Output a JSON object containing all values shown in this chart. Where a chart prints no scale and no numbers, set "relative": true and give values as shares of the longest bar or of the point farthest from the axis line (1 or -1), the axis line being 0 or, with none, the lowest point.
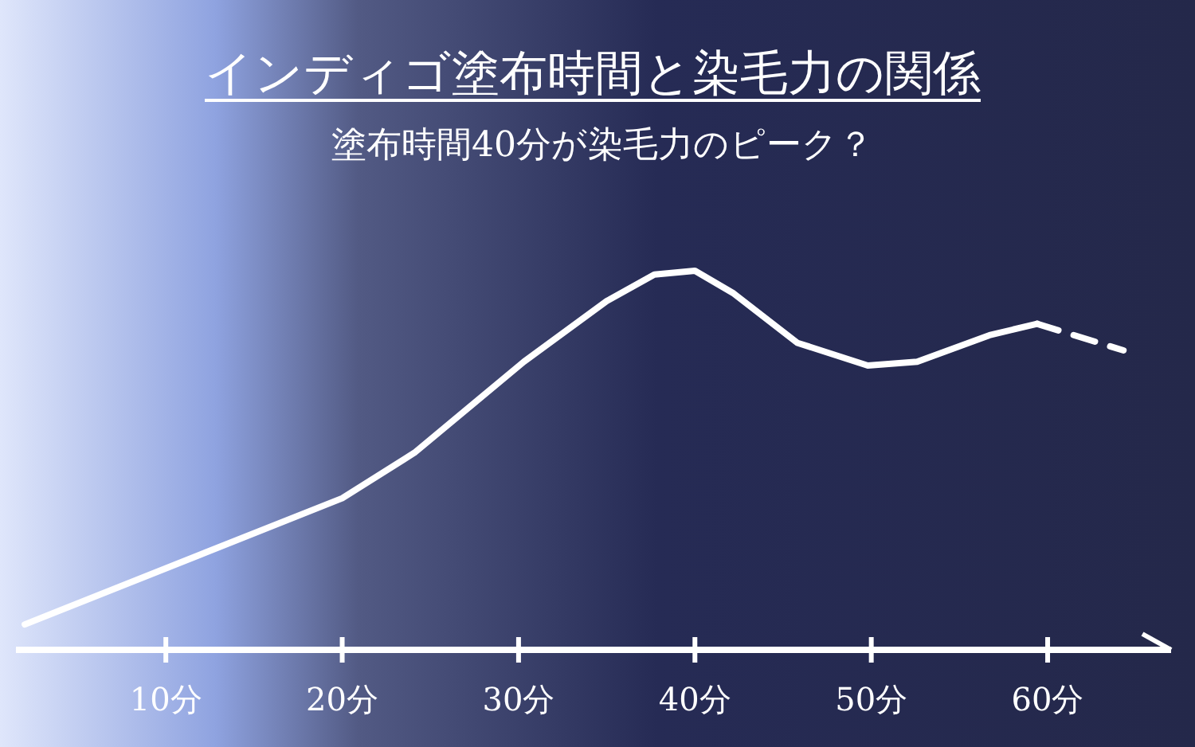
{
  "chart_data": {
    "type": "line",
    "title": "インディゴ塗布時間と染毛力の関係",
    "subtitle": "塗布時間40分が染毛力のピーク？",
    "relative": true,
    "xlim": [
      1.5,
      67
    ],
    "xticks": [
      {
        "value": 10,
        "label": "10分"
      },
      {
        "value": 20,
        "label": "20分"
      },
      {
        "value": 30,
        "label": "30分"
      },
      {
        "value": 40,
        "label": "40分"
      },
      {
        "value": 50,
        "label": "50分"
      },
      {
        "value": 60,
        "label": "60分"
      }
    ],
    "series": [
      {
        "color": "#ffffff",
        "line_style": "solid",
        "x": [
          2,
          20,
          24.1,
          30.3,
          35,
          37.7,
          40,
          42.2,
          45.8,
          49.8,
          52.6,
          56.7,
          59.4
        ],
        "values": [
          0.067,
          0.4,
          0.52,
          0.76,
          0.92,
          0.99,
          1,
          0.94,
          0.81,
          0.75,
          0.76,
          0.83,
          0.86
        ]
      },
      {
        "color": "#ffffff",
        "line_style": "dashed",
        "x": [
          59.4,
          64.3
        ],
        "values": [
          0.86,
          0.79
        ]
      }
    ]
  }
}
